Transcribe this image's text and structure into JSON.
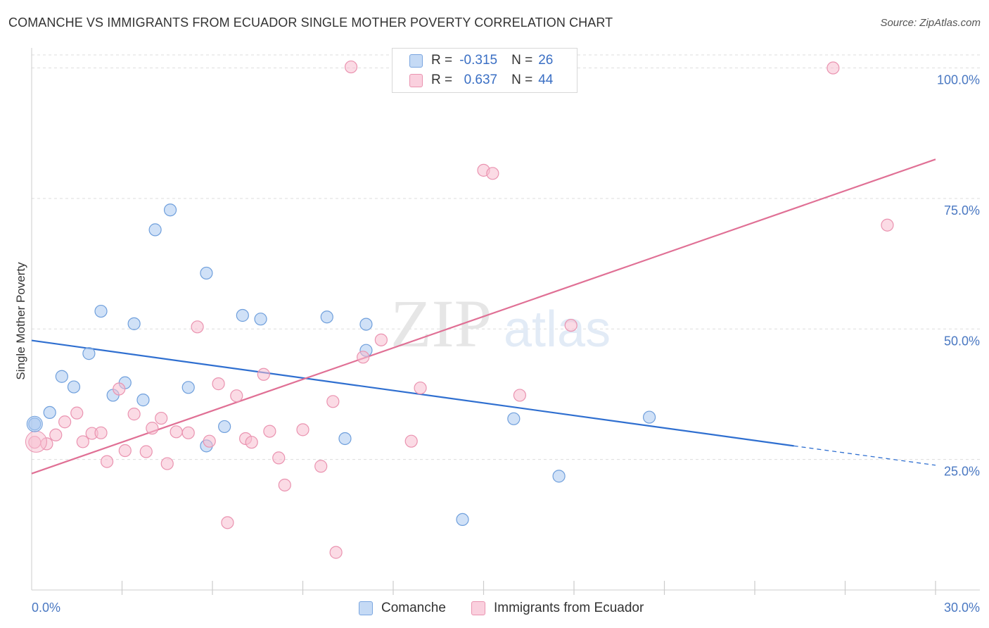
{
  "title": "COMANCHE VS IMMIGRANTS FROM ECUADOR SINGLE MOTHER POVERTY CORRELATION CHART",
  "source": "Source: ZipAtlas.com",
  "watermark": {
    "zip": "ZIP",
    "atlas": "atlas"
  },
  "stats": [
    {
      "r_label": "R =",
      "r_value": "-0.315",
      "n_label": "N =",
      "n_value": "26",
      "color": "#a9c8f0",
      "border": "#7aa6e0"
    },
    {
      "r_label": "R =",
      "r_value": "0.637",
      "n_label": "N =",
      "n_value": "44",
      "color": "#f7bdd0",
      "border": "#ea93b0"
    }
  ],
  "chart_data": {
    "type": "scatter",
    "title": "COMANCHE VS IMMIGRANTS FROM ECUADOR SINGLE MOTHER POVERTY CORRELATION CHART",
    "xlabel": "",
    "ylabel": "Single Mother Poverty",
    "xlim": [
      0,
      30
    ],
    "ylim": [
      0,
      102.5
    ],
    "x_tick_labels": [
      "0.0%",
      "30.0%"
    ],
    "y_ticks": [
      25,
      50,
      75,
      100
    ],
    "y_tick_labels": [
      "25.0%",
      "50.0%",
      "75.0%",
      "100.0%"
    ],
    "grid": true,
    "legend_position": "bottom",
    "series": [
      {
        "name": "Comanche",
        "color": "#a9c8f0",
        "stroke": "#6f9fdc",
        "line_color": "#2f6fd0",
        "trend": {
          "x0": 0,
          "y0": 47.8,
          "x1": 25.3,
          "y1": 27.6,
          "dash_to_x": 30,
          "dash_to_y": 23.9
        },
        "points": [
          [
            0.1,
            31.8
          ],
          [
            0.6,
            34.0
          ],
          [
            1.0,
            40.9
          ],
          [
            1.4,
            38.9
          ],
          [
            1.9,
            45.3
          ],
          [
            2.3,
            53.4
          ],
          [
            2.7,
            37.3
          ],
          [
            3.4,
            51.0
          ],
          [
            3.1,
            39.7
          ],
          [
            3.7,
            36.4
          ],
          [
            4.1,
            69.0
          ],
          [
            4.6,
            72.8
          ],
          [
            5.2,
            38.8
          ],
          [
            5.8,
            27.6
          ],
          [
            5.8,
            60.7
          ],
          [
            6.4,
            31.3
          ],
          [
            7.0,
            52.6
          ],
          [
            7.6,
            51.9
          ],
          [
            9.8,
            52.3
          ],
          [
            10.4,
            29.0
          ],
          [
            11.1,
            50.9
          ],
          [
            11.1,
            45.9
          ],
          [
            14.3,
            13.5
          ],
          [
            16.0,
            32.8
          ],
          [
            17.5,
            21.8
          ],
          [
            20.5,
            33.1
          ]
        ]
      },
      {
        "name": "Immigrants from Ecuador",
        "color": "#f7bdd0",
        "stroke": "#ea93b0",
        "line_color": "#e07095",
        "trend": {
          "x0": 0,
          "y0": 22.3,
          "x1": 30,
          "y1": 82.5
        },
        "points": [
          [
            0.1,
            28.3
          ],
          [
            0.5,
            28.0
          ],
          [
            0.8,
            29.7
          ],
          [
            1.1,
            32.2
          ],
          [
            1.5,
            33.9
          ],
          [
            1.7,
            28.4
          ],
          [
            2.0,
            30.0
          ],
          [
            2.3,
            30.1
          ],
          [
            2.5,
            24.6
          ],
          [
            2.9,
            38.5
          ],
          [
            3.1,
            26.7
          ],
          [
            3.4,
            33.7
          ],
          [
            3.8,
            26.5
          ],
          [
            4.0,
            31.0
          ],
          [
            4.3,
            32.9
          ],
          [
            4.5,
            24.2
          ],
          [
            4.8,
            30.3
          ],
          [
            5.2,
            30.1
          ],
          [
            5.5,
            50.4
          ],
          [
            5.9,
            28.5
          ],
          [
            6.2,
            39.5
          ],
          [
            6.5,
            12.9
          ],
          [
            6.8,
            37.2
          ],
          [
            7.1,
            29.0
          ],
          [
            7.3,
            28.3
          ],
          [
            7.7,
            41.3
          ],
          [
            7.9,
            30.4
          ],
          [
            8.2,
            25.3
          ],
          [
            8.4,
            20.1
          ],
          [
            9.0,
            30.7
          ],
          [
            9.6,
            23.7
          ],
          [
            10.0,
            36.1
          ],
          [
            10.1,
            7.2
          ],
          [
            10.6,
            100.2
          ],
          [
            11.0,
            44.6
          ],
          [
            11.6,
            47.9
          ],
          [
            12.6,
            28.5
          ],
          [
            12.9,
            38.7
          ],
          [
            15.0,
            80.4
          ],
          [
            15.3,
            79.8
          ],
          [
            16.2,
            37.3
          ],
          [
            17.9,
            50.7
          ],
          [
            26.6,
            100.0
          ],
          [
            28.4,
            69.9
          ]
        ]
      }
    ]
  }
}
